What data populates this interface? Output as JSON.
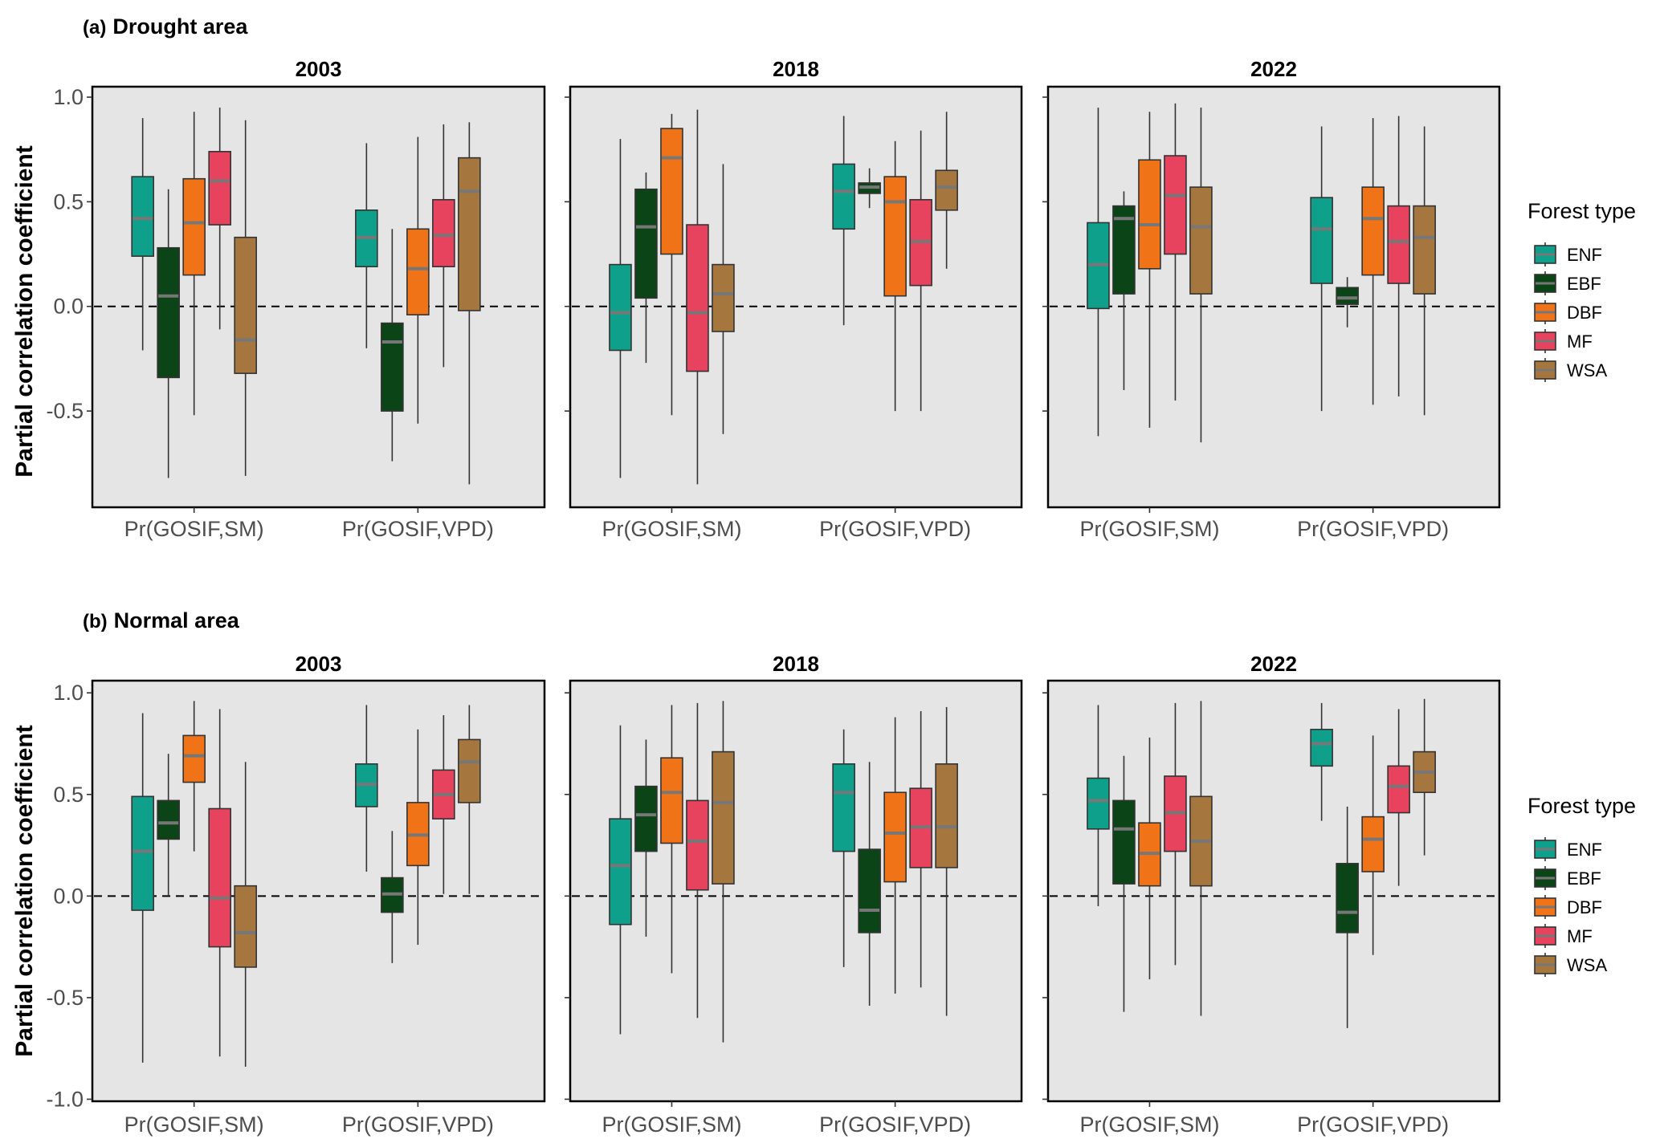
{
  "chart_data": {
    "type": "boxplot",
    "ylabel": "Partial correlation coefficient",
    "yticks": [
      -1.0,
      -0.5,
      0.0,
      0.5,
      1.0
    ],
    "ytick_labels": [
      "-1.0",
      "-0.5",
      "0.0",
      "0.5",
      "1.0"
    ],
    "categories": [
      "Pr(GOSIF,SM)",
      "Pr(GOSIF,VPD)"
    ],
    "legend": {
      "title": "Forest type",
      "placement": "right",
      "items": [
        {
          "name": "ENF",
          "color": "#0fa08c"
        },
        {
          "name": "EBF",
          "color": "#0b4416"
        },
        {
          "name": "DBF",
          "color": "#f07417"
        },
        {
          "name": "MF",
          "color": "#e8435e"
        },
        {
          "name": "WSA",
          "color": "#a5773f"
        }
      ]
    },
    "reference_line": {
      "y": 0,
      "style": "dashed"
    },
    "sections": [
      {
        "letter": "(a)",
        "title": "Drought area",
        "ylim": [
          -0.96,
          1.05
        ],
        "panels": [
          {
            "title": "2003",
            "groups": [
              {
                "category": "Pr(GOSIF,SM)",
                "boxes": [
                  {
                    "type": "ENF",
                    "min": -0.21,
                    "q1": 0.24,
                    "median": 0.42,
                    "q3": 0.62,
                    "max": 0.9
                  },
                  {
                    "type": "EBF",
                    "min": -0.82,
                    "q1": -0.34,
                    "median": 0.05,
                    "q3": 0.28,
                    "max": 0.56
                  },
                  {
                    "type": "DBF",
                    "min": -0.52,
                    "q1": 0.15,
                    "median": 0.4,
                    "q3": 0.61,
                    "max": 0.93
                  },
                  {
                    "type": "MF",
                    "min": -0.11,
                    "q1": 0.39,
                    "median": 0.6,
                    "q3": 0.74,
                    "max": 0.95
                  },
                  {
                    "type": "WSA",
                    "min": -0.81,
                    "q1": -0.32,
                    "median": -0.16,
                    "q3": 0.33,
                    "max": 0.89
                  }
                ]
              },
              {
                "category": "Pr(GOSIF,VPD)",
                "boxes": [
                  {
                    "type": "ENF",
                    "min": -0.2,
                    "q1": 0.19,
                    "median": 0.33,
                    "q3": 0.46,
                    "max": 0.78
                  },
                  {
                    "type": "EBF",
                    "min": -0.74,
                    "q1": -0.5,
                    "median": -0.17,
                    "q3": -0.08,
                    "max": 0.37
                  },
                  {
                    "type": "DBF",
                    "min": -0.56,
                    "q1": -0.04,
                    "median": 0.18,
                    "q3": 0.37,
                    "max": 0.81
                  },
                  {
                    "type": "MF",
                    "min": -0.29,
                    "q1": 0.19,
                    "median": 0.34,
                    "q3": 0.51,
                    "max": 0.87
                  },
                  {
                    "type": "WSA",
                    "min": -0.85,
                    "q1": -0.02,
                    "median": 0.55,
                    "q3": 0.71,
                    "max": 0.88
                  }
                ]
              }
            ]
          },
          {
            "title": "2018",
            "groups": [
              {
                "category": "Pr(GOSIF,SM)",
                "boxes": [
                  {
                    "type": "ENF",
                    "min": -0.82,
                    "q1": -0.21,
                    "median": -0.03,
                    "q3": 0.2,
                    "max": 0.8
                  },
                  {
                    "type": "EBF",
                    "min": -0.27,
                    "q1": 0.04,
                    "median": 0.38,
                    "q3": 0.56,
                    "max": 0.64
                  },
                  {
                    "type": "DBF",
                    "min": -0.52,
                    "q1": 0.25,
                    "median": 0.71,
                    "q3": 0.85,
                    "max": 0.92
                  },
                  {
                    "type": "MF",
                    "min": -0.85,
                    "q1": -0.31,
                    "median": -0.03,
                    "q3": 0.39,
                    "max": 0.94
                  },
                  {
                    "type": "WSA",
                    "min": -0.61,
                    "q1": -0.12,
                    "median": 0.06,
                    "q3": 0.2,
                    "max": 0.68
                  }
                ]
              },
              {
                "category": "Pr(GOSIF,VPD)",
                "boxes": [
                  {
                    "type": "ENF",
                    "min": -0.09,
                    "q1": 0.37,
                    "median": 0.55,
                    "q3": 0.68,
                    "max": 0.91
                  },
                  {
                    "type": "EBF",
                    "min": 0.47,
                    "q1": 0.54,
                    "median": 0.57,
                    "q3": 0.59,
                    "max": 0.66
                  },
                  {
                    "type": "DBF",
                    "min": -0.5,
                    "q1": 0.05,
                    "median": 0.5,
                    "q3": 0.62,
                    "max": 0.79
                  },
                  {
                    "type": "MF",
                    "min": -0.5,
                    "q1": 0.1,
                    "median": 0.31,
                    "q3": 0.51,
                    "max": 0.84
                  },
                  {
                    "type": "WSA",
                    "min": 0.18,
                    "q1": 0.46,
                    "median": 0.57,
                    "q3": 0.65,
                    "max": 0.93
                  }
                ]
              }
            ]
          },
          {
            "title": "2022",
            "groups": [
              {
                "category": "Pr(GOSIF,SM)",
                "boxes": [
                  {
                    "type": "ENF",
                    "min": -0.62,
                    "q1": -0.01,
                    "median": 0.2,
                    "q3": 0.4,
                    "max": 0.95
                  },
                  {
                    "type": "EBF",
                    "min": -0.4,
                    "q1": 0.06,
                    "median": 0.42,
                    "q3": 0.48,
                    "max": 0.55
                  },
                  {
                    "type": "DBF",
                    "min": -0.58,
                    "q1": 0.18,
                    "median": 0.39,
                    "q3": 0.7,
                    "max": 0.93
                  },
                  {
                    "type": "MF",
                    "min": -0.45,
                    "q1": 0.25,
                    "median": 0.53,
                    "q3": 0.72,
                    "max": 0.97
                  },
                  {
                    "type": "WSA",
                    "min": -0.65,
                    "q1": 0.06,
                    "median": 0.38,
                    "q3": 0.57,
                    "max": 0.95
                  }
                ]
              },
              {
                "category": "Pr(GOSIF,VPD)",
                "boxes": [
                  {
                    "type": "ENF",
                    "min": -0.5,
                    "q1": 0.11,
                    "median": 0.37,
                    "q3": 0.52,
                    "max": 0.86
                  },
                  {
                    "type": "EBF",
                    "min": -0.1,
                    "q1": 0.01,
                    "median": 0.04,
                    "q3": 0.09,
                    "max": 0.14
                  },
                  {
                    "type": "DBF",
                    "min": -0.47,
                    "q1": 0.15,
                    "median": 0.42,
                    "q3": 0.57,
                    "max": 0.9
                  },
                  {
                    "type": "MF",
                    "min": -0.43,
                    "q1": 0.11,
                    "median": 0.31,
                    "q3": 0.48,
                    "max": 0.91
                  },
                  {
                    "type": "WSA",
                    "min": -0.52,
                    "q1": 0.06,
                    "median": 0.33,
                    "q3": 0.48,
                    "max": 0.86
                  }
                ]
              }
            ]
          }
        ]
      },
      {
        "letter": "(b)",
        "title": "Normal area",
        "ylim": [
          -1.01,
          1.06
        ],
        "panels": [
          {
            "title": "2003",
            "groups": [
              {
                "category": "Pr(GOSIF,SM)",
                "boxes": [
                  {
                    "type": "ENF",
                    "min": -0.82,
                    "q1": -0.07,
                    "median": 0.22,
                    "q3": 0.49,
                    "max": 0.9
                  },
                  {
                    "type": "EBF",
                    "min": 0.0,
                    "q1": 0.28,
                    "median": 0.36,
                    "q3": 0.47,
                    "max": 0.7
                  },
                  {
                    "type": "DBF",
                    "min": 0.22,
                    "q1": 0.56,
                    "median": 0.69,
                    "q3": 0.79,
                    "max": 0.96
                  },
                  {
                    "type": "MF",
                    "min": -0.79,
                    "q1": -0.25,
                    "median": -0.01,
                    "q3": 0.43,
                    "max": 0.92
                  },
                  {
                    "type": "WSA",
                    "min": -0.84,
                    "q1": -0.35,
                    "median": -0.18,
                    "q3": 0.05,
                    "max": 0.66
                  }
                ]
              },
              {
                "category": "Pr(GOSIF,VPD)",
                "boxes": [
                  {
                    "type": "ENF",
                    "min": 0.12,
                    "q1": 0.44,
                    "median": 0.55,
                    "q3": 0.65,
                    "max": 0.94
                  },
                  {
                    "type": "EBF",
                    "min": -0.33,
                    "q1": -0.08,
                    "median": 0.01,
                    "q3": 0.09,
                    "max": 0.32
                  },
                  {
                    "type": "DBF",
                    "min": -0.24,
                    "q1": 0.15,
                    "median": 0.3,
                    "q3": 0.46,
                    "max": 0.82
                  },
                  {
                    "type": "MF",
                    "min": 0.01,
                    "q1": 0.38,
                    "median": 0.5,
                    "q3": 0.62,
                    "max": 0.89
                  },
                  {
                    "type": "WSA",
                    "min": 0.01,
                    "q1": 0.46,
                    "median": 0.66,
                    "q3": 0.77,
                    "max": 0.94
                  }
                ]
              }
            ]
          },
          {
            "title": "2018",
            "groups": [
              {
                "category": "Pr(GOSIF,SM)",
                "boxes": [
                  {
                    "type": "ENF",
                    "min": -0.68,
                    "q1": -0.14,
                    "median": 0.15,
                    "q3": 0.38,
                    "max": 0.84
                  },
                  {
                    "type": "EBF",
                    "min": -0.2,
                    "q1": 0.22,
                    "median": 0.4,
                    "q3": 0.54,
                    "max": 0.77
                  },
                  {
                    "type": "DBF",
                    "min": -0.38,
                    "q1": 0.26,
                    "median": 0.51,
                    "q3": 0.68,
                    "max": 0.94
                  },
                  {
                    "type": "MF",
                    "min": -0.6,
                    "q1": 0.03,
                    "median": 0.27,
                    "q3": 0.47,
                    "max": 0.95
                  },
                  {
                    "type": "WSA",
                    "min": -0.72,
                    "q1": 0.06,
                    "median": 0.46,
                    "q3": 0.71,
                    "max": 0.96
                  }
                ]
              },
              {
                "category": "Pr(GOSIF,VPD)",
                "boxes": [
                  {
                    "type": "ENF",
                    "min": -0.35,
                    "q1": 0.22,
                    "median": 0.51,
                    "q3": 0.65,
                    "max": 0.82
                  },
                  {
                    "type": "EBF",
                    "min": -0.54,
                    "q1": -0.18,
                    "median": -0.07,
                    "q3": 0.23,
                    "max": 0.66
                  },
                  {
                    "type": "DBF",
                    "min": -0.48,
                    "q1": 0.07,
                    "median": 0.31,
                    "q3": 0.51,
                    "max": 0.88
                  },
                  {
                    "type": "MF",
                    "min": -0.45,
                    "q1": 0.14,
                    "median": 0.34,
                    "q3": 0.53,
                    "max": 0.91
                  },
                  {
                    "type": "WSA",
                    "min": -0.59,
                    "q1": 0.14,
                    "median": 0.34,
                    "q3": 0.65,
                    "max": 0.93
                  }
                ]
              }
            ]
          },
          {
            "title": "2022",
            "groups": [
              {
                "category": "Pr(GOSIF,SM)",
                "boxes": [
                  {
                    "type": "ENF",
                    "min": -0.05,
                    "q1": 0.33,
                    "median": 0.47,
                    "q3": 0.58,
                    "max": 0.94
                  },
                  {
                    "type": "EBF",
                    "min": -0.57,
                    "q1": 0.06,
                    "median": 0.33,
                    "q3": 0.47,
                    "max": 0.69
                  },
                  {
                    "type": "DBF",
                    "min": -0.41,
                    "q1": 0.05,
                    "median": 0.21,
                    "q3": 0.36,
                    "max": 0.78
                  },
                  {
                    "type": "MF",
                    "min": -0.34,
                    "q1": 0.22,
                    "median": 0.41,
                    "q3": 0.59,
                    "max": 0.95
                  },
                  {
                    "type": "WSA",
                    "min": -0.59,
                    "q1": 0.05,
                    "median": 0.27,
                    "q3": 0.49,
                    "max": 0.96
                  }
                ]
              },
              {
                "category": "Pr(GOSIF,VPD)",
                "boxes": [
                  {
                    "type": "ENF",
                    "min": 0.37,
                    "q1": 0.64,
                    "median": 0.75,
                    "q3": 0.82,
                    "max": 0.95
                  },
                  {
                    "type": "EBF",
                    "min": -0.65,
                    "q1": -0.18,
                    "median": -0.08,
                    "q3": 0.16,
                    "max": 0.44
                  },
                  {
                    "type": "DBF",
                    "min": -0.29,
                    "q1": 0.12,
                    "median": 0.28,
                    "q3": 0.39,
                    "max": 0.79
                  },
                  {
                    "type": "MF",
                    "min": 0.05,
                    "q1": 0.41,
                    "median": 0.54,
                    "q3": 0.64,
                    "max": 0.92
                  },
                  {
                    "type": "WSA",
                    "min": 0.2,
                    "q1": 0.51,
                    "median": 0.61,
                    "q3": 0.71,
                    "max": 0.97
                  }
                ]
              }
            ]
          }
        ]
      }
    ]
  }
}
